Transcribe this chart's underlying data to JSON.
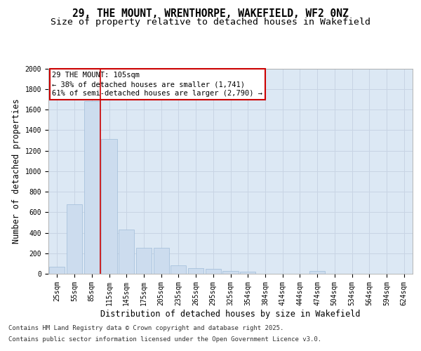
{
  "title_line1": "29, THE MOUNT, WRENTHORPE, WAKEFIELD, WF2 0NZ",
  "title_line2": "Size of property relative to detached houses in Wakefield",
  "xlabel": "Distribution of detached houses by size in Wakefield",
  "ylabel": "Number of detached properties",
  "categories": [
    "25sqm",
    "55sqm",
    "85sqm",
    "115sqm",
    "145sqm",
    "175sqm",
    "205sqm",
    "235sqm",
    "265sqm",
    "295sqm",
    "325sqm",
    "354sqm",
    "384sqm",
    "414sqm",
    "444sqm",
    "474sqm",
    "504sqm",
    "534sqm",
    "564sqm",
    "594sqm",
    "624sqm"
  ],
  "values": [
    65,
    680,
    1680,
    1310,
    430,
    250,
    250,
    80,
    55,
    45,
    30,
    20,
    0,
    0,
    0,
    30,
    0,
    0,
    0,
    0,
    0
  ],
  "bar_color": "#ccdcee",
  "bar_edge_color": "#a0bcd8",
  "grid_color": "#c8d4e4",
  "background_color": "#dce8f4",
  "annotation_box_color": "#cc0000",
  "property_line_color": "#cc0000",
  "property_line_x": 2.48,
  "annotation_text": "29 THE MOUNT: 105sqm\n← 38% of detached houses are smaller (1,741)\n61% of semi-detached houses are larger (2,790) →",
  "ylim": [
    0,
    2000
  ],
  "yticks": [
    0,
    200,
    400,
    600,
    800,
    1000,
    1200,
    1400,
    1600,
    1800,
    2000
  ],
  "footer_line1": "Contains HM Land Registry data © Crown copyright and database right 2025.",
  "footer_line2": "Contains public sector information licensed under the Open Government Licence v3.0.",
  "title_fontsize": 10.5,
  "subtitle_fontsize": 9.5,
  "axis_label_fontsize": 8.5,
  "tick_fontsize": 7,
  "annotation_fontsize": 7.5,
  "footer_fontsize": 6.5,
  "fig_bg": "#ffffff"
}
